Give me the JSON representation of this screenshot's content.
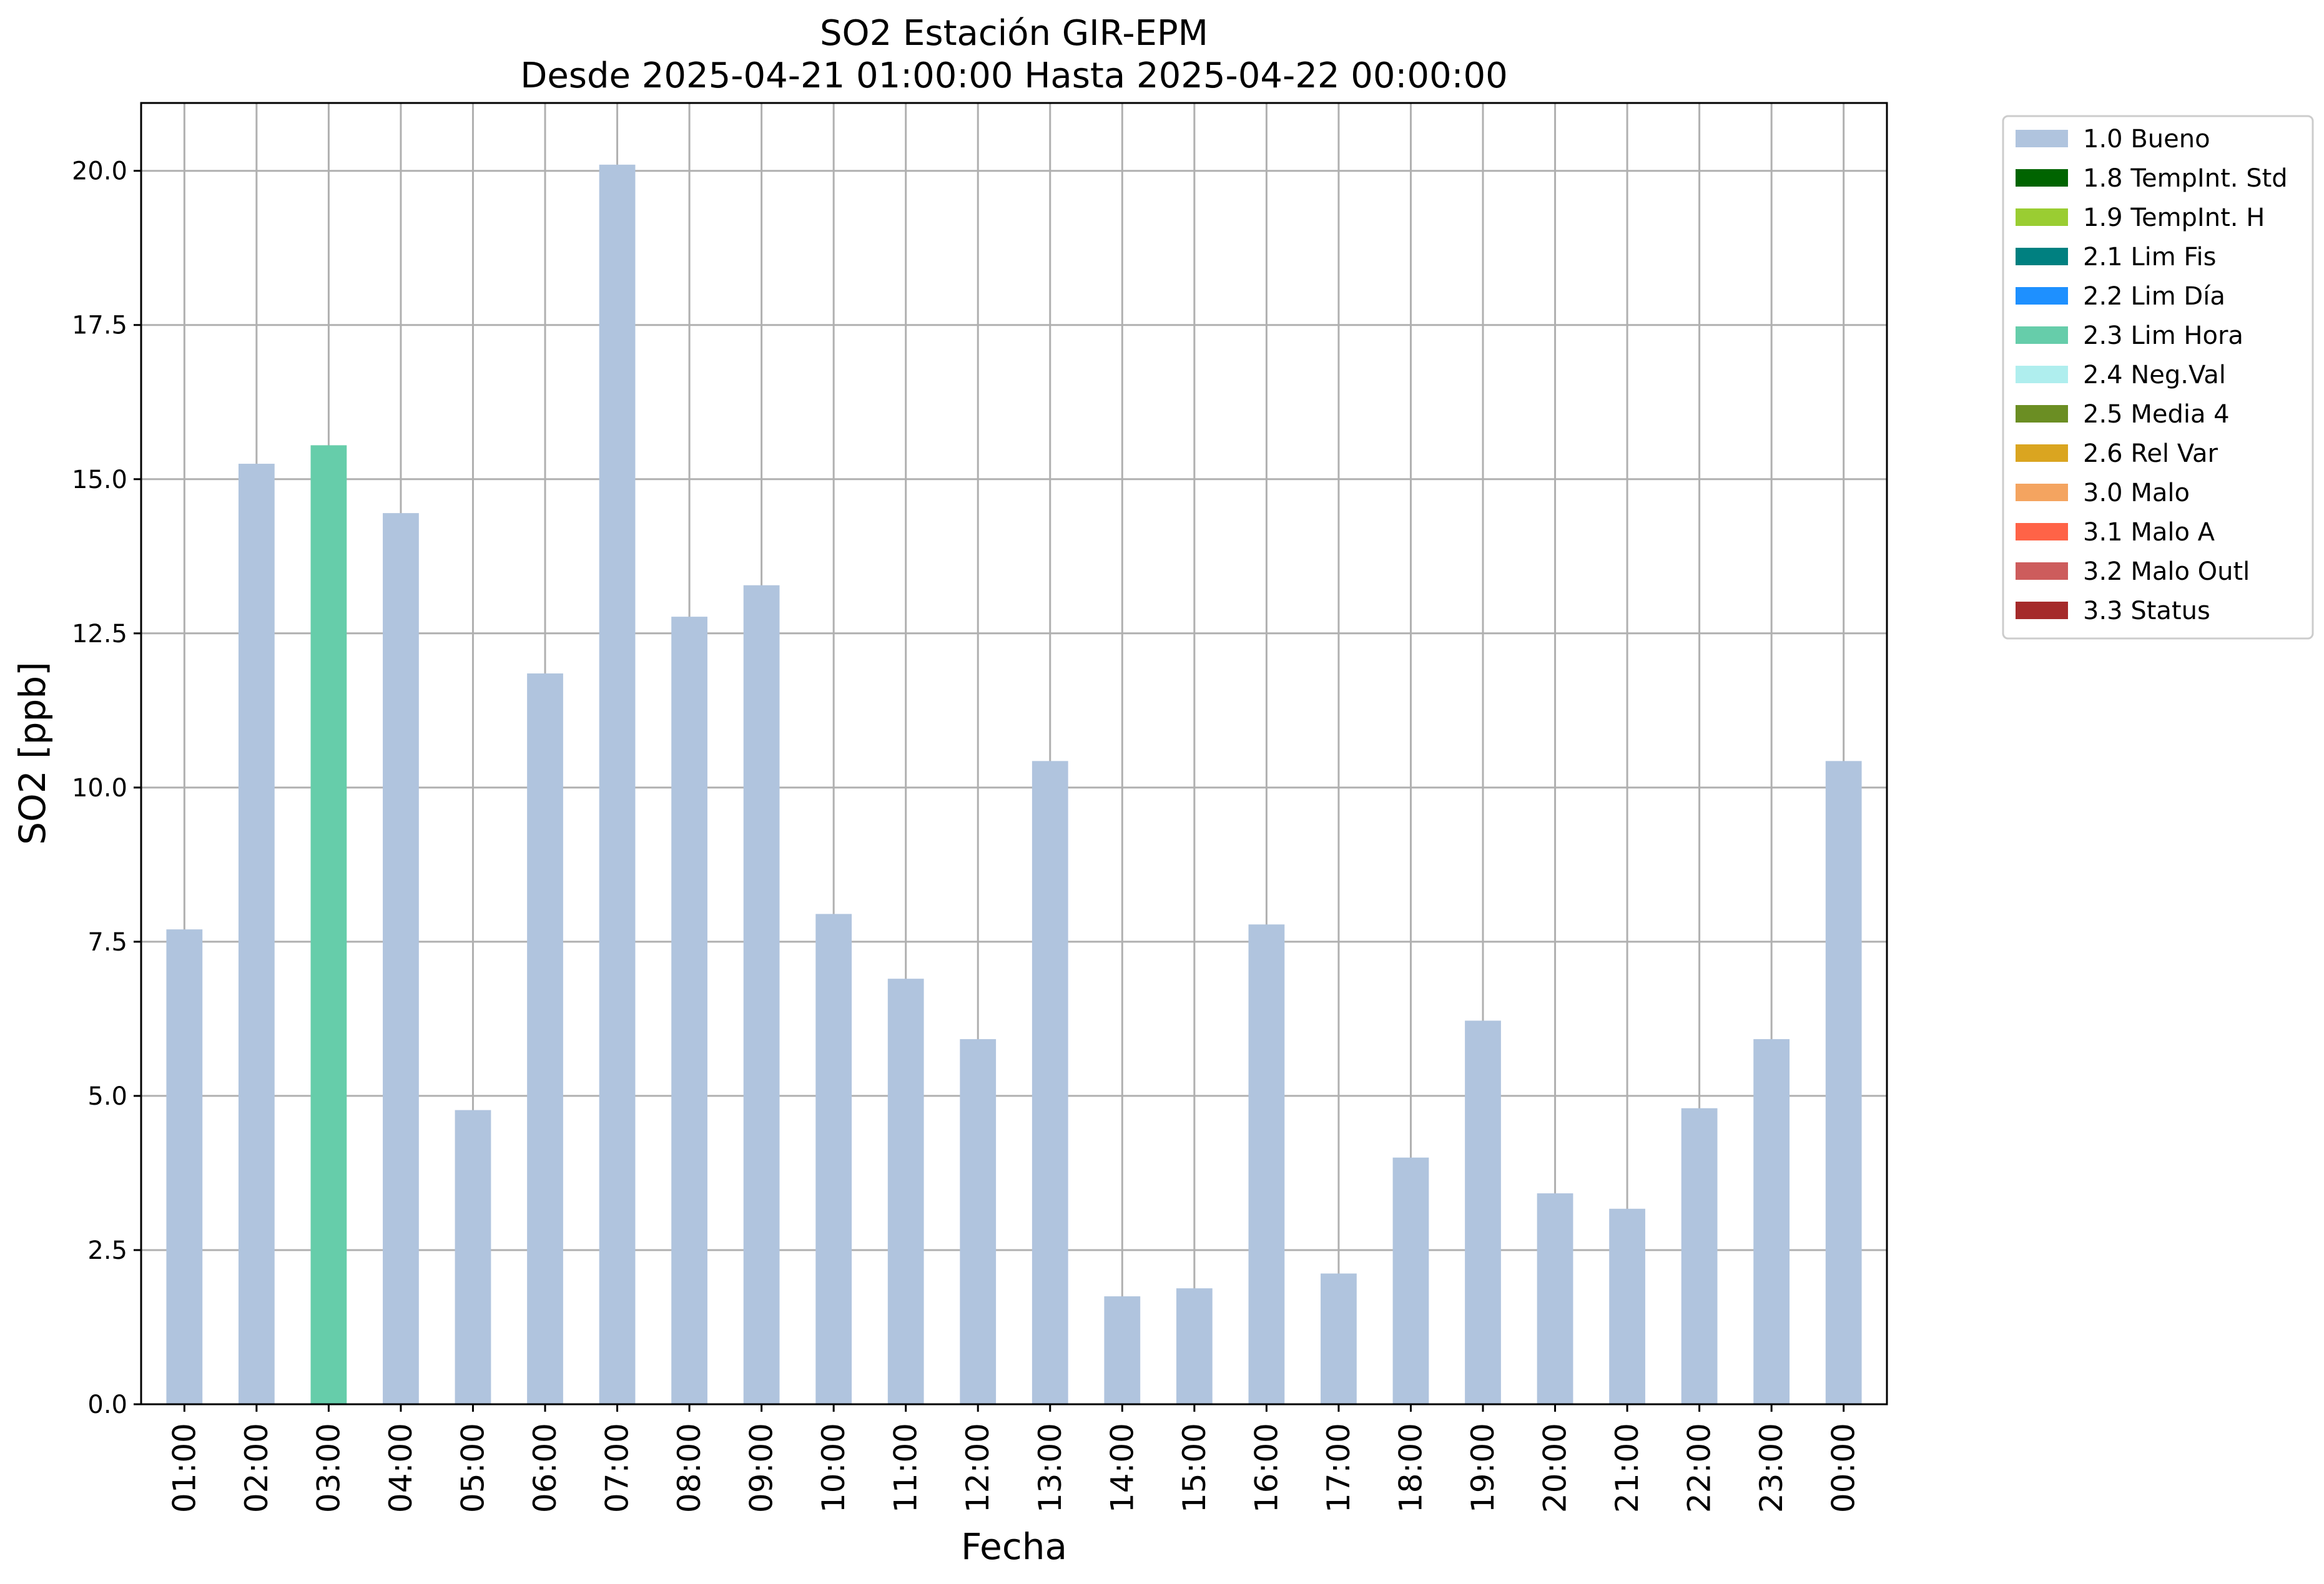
{
  "chart_data": {
    "type": "bar",
    "title": "SO2 Estación GIR-EPM",
    "subtitle": "Desde 2025-04-21 01:00:00 Hasta 2025-04-22 00:00:00",
    "xlabel": "Fecha",
    "ylabel": "SO2 [ppb]",
    "ylim": [
      0,
      21.1
    ],
    "yticks": [
      "0.0",
      "2.5",
      "5.0",
      "7.5",
      "10.0",
      "12.5",
      "15.0",
      "17.5",
      "20.0"
    ],
    "grid": true,
    "legend_position": "outside top-right",
    "categories": [
      "01:00",
      "02:00",
      "03:00",
      "04:00",
      "05:00",
      "06:00",
      "07:00",
      "08:00",
      "09:00",
      "10:00",
      "11:00",
      "12:00",
      "13:00",
      "14:00",
      "15:00",
      "16:00",
      "17:00",
      "18:00",
      "19:00",
      "20:00",
      "21:00",
      "22:00",
      "23:00",
      "00:00"
    ],
    "values": [
      7.7,
      15.25,
      15.55,
      14.45,
      4.77,
      11.85,
      20.1,
      12.77,
      13.28,
      7.95,
      6.9,
      5.92,
      10.43,
      1.75,
      1.88,
      7.78,
      2.12,
      4.0,
      6.22,
      3.42,
      3.17,
      4.8,
      5.92,
      10.43
    ],
    "bar_flags": [
      "1.0 Bueno",
      "1.0 Bueno",
      "2.3 Lim Hora",
      "1.0 Bueno",
      "1.0 Bueno",
      "1.0 Bueno",
      "1.0 Bueno",
      "1.0 Bueno",
      "1.0 Bueno",
      "1.0 Bueno",
      "1.0 Bueno",
      "1.0 Bueno",
      "1.0 Bueno",
      "1.0 Bueno",
      "1.0 Bueno",
      "1.0 Bueno",
      "1.0 Bueno",
      "1.0 Bueno",
      "1.0 Bueno",
      "1.0 Bueno",
      "1.0 Bueno",
      "1.0 Bueno",
      "1.0 Bueno",
      "1.0 Bueno"
    ],
    "legend": [
      {
        "label": "1.0 Bueno",
        "color": "#b0c4de"
      },
      {
        "label": "1.8 TempInt. Std",
        "color": "#006400"
      },
      {
        "label": "1.9 TempInt. H",
        "color": "#9acd32"
      },
      {
        "label": "2.1 Lim Fis",
        "color": "#008080"
      },
      {
        "label": "2.2 Lim Día",
        "color": "#1e90ff"
      },
      {
        "label": "2.3 Lim Hora",
        "color": "#66cdaa"
      },
      {
        "label": "2.4 Neg.Val",
        "color": "#afeeee"
      },
      {
        "label": "2.5 Media 4",
        "color": "#6b8e23"
      },
      {
        "label": "2.6 Rel Var",
        "color": "#daa520"
      },
      {
        "label": "3.0 Malo",
        "color": "#f4a460"
      },
      {
        "label": "3.1 Malo A",
        "color": "#ff6347"
      },
      {
        "label": "3.2 Malo Outl",
        "color": "#cd5c5c"
      },
      {
        "label": "3.3 Status",
        "color": "#a52a2a"
      }
    ]
  }
}
